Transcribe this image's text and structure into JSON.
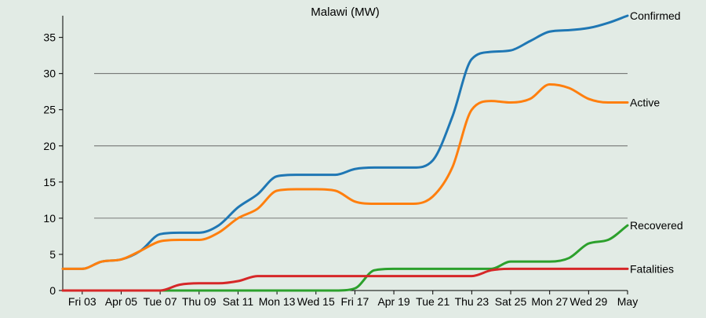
{
  "chart_data": {
    "type": "line",
    "title": "Malawi (MW)",
    "xlabel": "",
    "ylabel": "",
    "ylim": [
      0,
      38
    ],
    "yticks": [
      0,
      5,
      10,
      15,
      20,
      25,
      30,
      35
    ],
    "grid": {
      "y": [
        10,
        20,
        30
      ]
    },
    "legend": "end-of-line labels",
    "x": [
      "Apr 02",
      "Apr 03",
      "Apr 04",
      "Apr 05",
      "Apr 06",
      "Apr 07",
      "Apr 08",
      "Apr 09",
      "Apr 10",
      "Apr 11",
      "Apr 12",
      "Apr 13",
      "Apr 14",
      "Apr 15",
      "Apr 16",
      "Apr 17",
      "Apr 18",
      "Apr 19",
      "Apr 20",
      "Apr 21",
      "Apr 22",
      "Apr 23",
      "Apr 24",
      "Apr 25",
      "Apr 26",
      "Apr 27",
      "Apr 28",
      "Apr 29",
      "Apr 30",
      "May 01"
    ],
    "x_tick_labels": [
      {
        "x": "Apr 03",
        "label": "Fri 03"
      },
      {
        "x": "Apr 05",
        "label": "Apr 05"
      },
      {
        "x": "Apr 07",
        "label": "Tue 07"
      },
      {
        "x": "Apr 09",
        "label": "Thu 09"
      },
      {
        "x": "Apr 11",
        "label": "Sat 11"
      },
      {
        "x": "Apr 13",
        "label": "Mon 13"
      },
      {
        "x": "Apr 15",
        "label": "Wed 15"
      },
      {
        "x": "Apr 17",
        "label": "Fri 17"
      },
      {
        "x": "Apr 19",
        "label": "Apr 19"
      },
      {
        "x": "Apr 21",
        "label": "Tue 21"
      },
      {
        "x": "Apr 23",
        "label": "Thu 23"
      },
      {
        "x": "Apr 25",
        "label": "Sat 25"
      },
      {
        "x": "Apr 27",
        "label": "Mon 27"
      },
      {
        "x": "Apr 29",
        "label": "Wed 29"
      },
      {
        "x": "May 01",
        "label": "May"
      }
    ],
    "series": [
      {
        "name": "Confirmed",
        "color": "#1f77b4",
        "values": [
          3,
          3,
          4,
          4.3,
          5.5,
          7.8,
          8,
          8,
          9,
          11.5,
          13.3,
          15.8,
          16,
          16,
          16,
          16.8,
          17,
          17,
          17,
          18,
          24,
          32,
          33,
          33.2,
          34.5,
          35.8,
          36,
          36.3,
          37,
          38
        ]
      },
      {
        "name": "Active",
        "color": "#ff7f0e",
        "values": [
          3,
          3,
          4,
          4.3,
          5.5,
          6.8,
          7,
          7,
          8,
          10,
          11.3,
          13.8,
          14,
          14,
          13.8,
          12.3,
          12,
          12,
          12,
          13,
          17,
          25,
          26.2,
          26,
          26.5,
          28.5,
          28,
          26.5,
          26,
          26
        ]
      },
      {
        "name": "Recovered",
        "color": "#2ca02c",
        "values": [
          0,
          0,
          0,
          0,
          0,
          0,
          0,
          0,
          0,
          0,
          0,
          0,
          0,
          0,
          0,
          0.3,
          2.8,
          3,
          3,
          3,
          3,
          3,
          3,
          4,
          4,
          4,
          4.5,
          6.5,
          7,
          9
        ]
      },
      {
        "name": "Fatalities",
        "color": "#d62728",
        "values": [
          0,
          0,
          0,
          0,
          0,
          0,
          0.8,
          1,
          1,
          1.3,
          2,
          2,
          2,
          2,
          2,
          2,
          2,
          2,
          2,
          2,
          2,
          2,
          2.8,
          3,
          3,
          3,
          3,
          3,
          3,
          3
        ]
      }
    ]
  }
}
